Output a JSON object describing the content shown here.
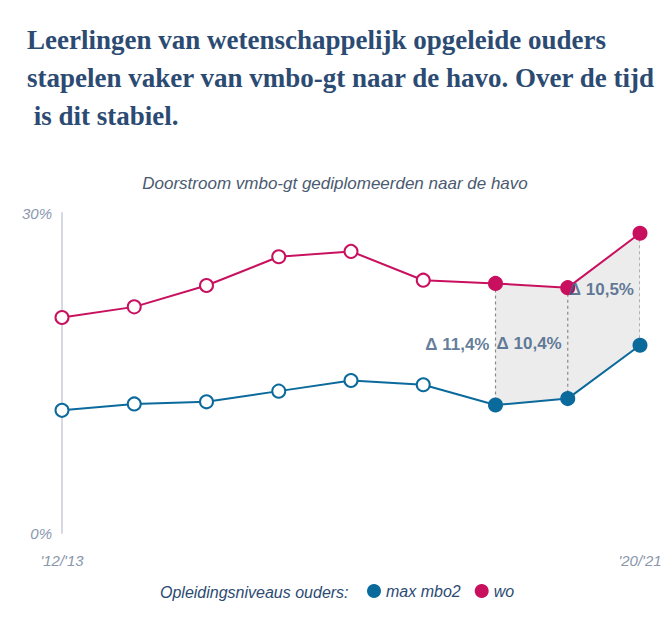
{
  "chart_data": {
    "type": "line",
    "title": "Leerlingen van wetenschappelijk opgeleide ouders stapelen vaker van vmbo-gt naar de havo. Over de tijd is dit stabiel.",
    "subtitle": "Doorstroom vmbo-gt gediplomeerden naar de havo",
    "categories": [
      "'12/'13",
      null,
      null,
      null,
      null,
      null,
      null,
      null,
      "'20/'21"
    ],
    "series": [
      {
        "name": "max mbo2",
        "color": "#0b6a9c",
        "values": [
          11.5,
          12.1,
          12.3,
          13.3,
          14.3,
          13.9,
          12.0,
          12.6,
          17.6
        ]
      },
      {
        "name": "wo",
        "color": "#c8105f",
        "values": [
          20.2,
          21.2,
          23.2,
          25.9,
          26.4,
          23.7,
          23.4,
          23.0,
          28.1
        ]
      }
    ],
    "ylim": [
      0,
      30
    ],
    "yticks": [
      {
        "value": 0,
        "label": "0%"
      },
      {
        "value": 30,
        "label": "30%"
      }
    ],
    "grid": false,
    "legend": "bottom",
    "legend_title": "Opleidingsniveaus ouders:",
    "marker": "circle",
    "annotations": [
      {
        "index": 6,
        "value": 11.4,
        "label": "Δ 11,4%"
      },
      {
        "index": 7,
        "value": 10.4,
        "label": "Δ 10,4%"
      },
      {
        "index": 8,
        "value": 10.5,
        "label": "Δ 10,5%"
      }
    ]
  }
}
